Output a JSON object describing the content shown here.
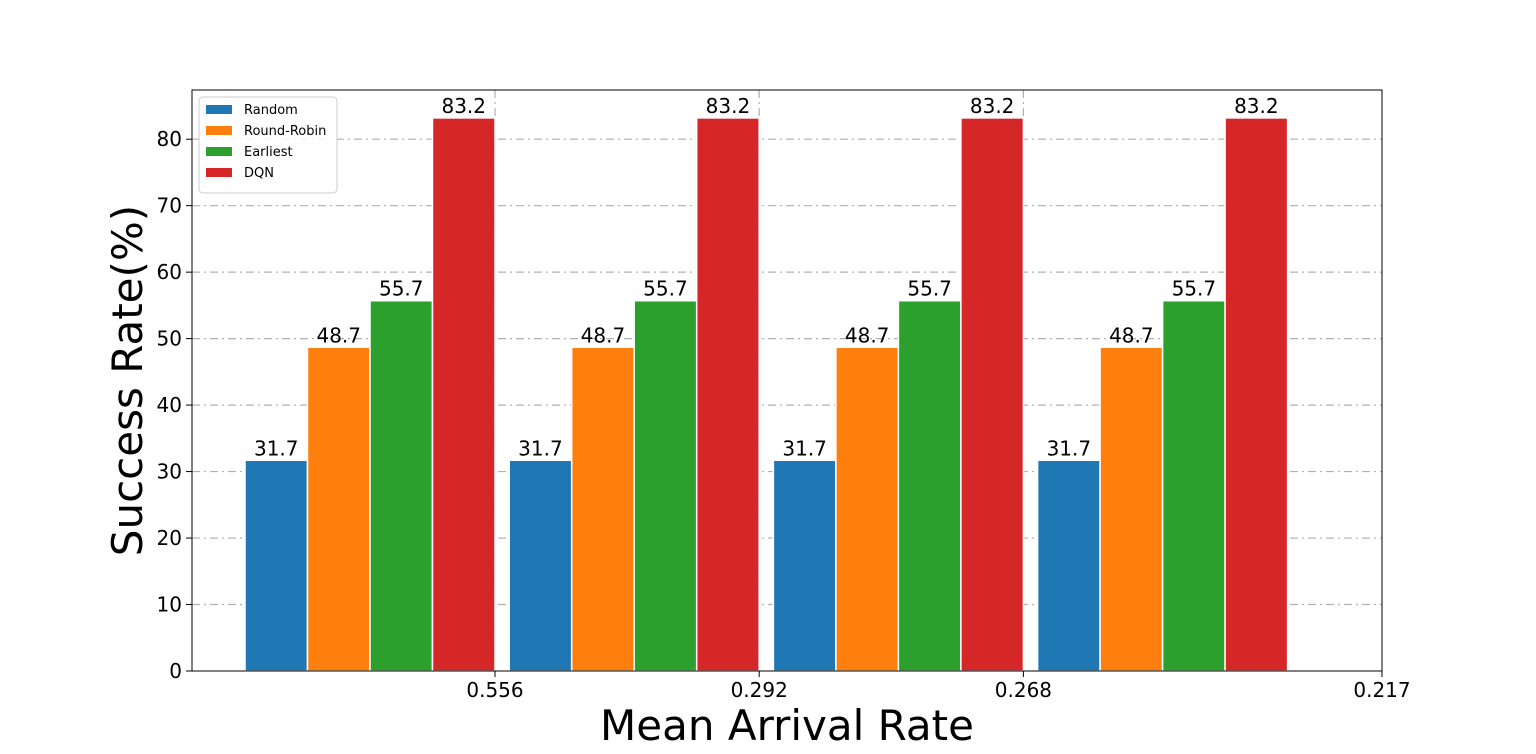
{
  "chart_data": {
    "type": "bar",
    "title": "",
    "xlabel": "Mean Arrival Rate",
    "ylabel": "Success Rate(%)",
    "ylim": [
      0,
      87.4
    ],
    "yticks": [
      0,
      10,
      20,
      30,
      40,
      50,
      60,
      70,
      80
    ],
    "xtick_labels": [
      "0.556",
      "0.292",
      "0.268",
      "0.217"
    ],
    "group_count": 4,
    "grid": true,
    "legend_position": "upper-left",
    "series": [
      {
        "name": "Random",
        "color": "#1f77b4",
        "values": [
          31.7,
          31.7,
          31.7,
          31.7
        ]
      },
      {
        "name": "Round-Robin",
        "color": "#ff7f0e",
        "values": [
          48.7,
          48.7,
          48.7,
          48.7
        ]
      },
      {
        "name": "Earliest",
        "color": "#2ca02c",
        "values": [
          55.7,
          55.7,
          55.7,
          55.7
        ]
      },
      {
        "name": "DQN",
        "color": "#d62728",
        "values": [
          83.2,
          83.2,
          83.2,
          83.2
        ]
      }
    ]
  }
}
